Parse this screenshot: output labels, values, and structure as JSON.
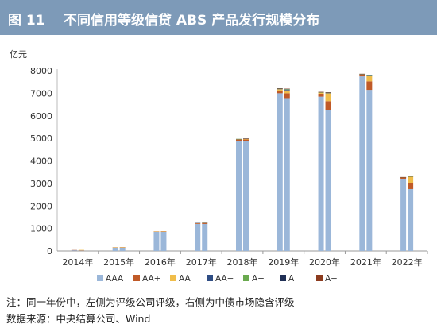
{
  "header": {
    "figure_label": "图 11",
    "title": "不同信用等级信贷 ABS 产品发行规模分布"
  },
  "colors": {
    "header_bg": "#7d9ab8",
    "AAA": "#9bb7d9",
    "AA+": "#c05a28",
    "AA": "#f0bd4a",
    "AA-": "#2f4d84",
    "A+": "#6aaa4f",
    "A": "#1f2f55",
    "A-": "#8c3b1e"
  },
  "chart_data": {
    "type": "bar",
    "stacked": true,
    "ylabel": "亿元",
    "ylim": [
      0,
      8000
    ],
    "yticks": [
      0,
      1000,
      2000,
      3000,
      4000,
      5000,
      6000,
      7000,
      8000
    ],
    "categories": [
      "2014年",
      "2015年",
      "2016年",
      "2017年",
      "2018年",
      "2019年",
      "2020年",
      "2021年",
      "2022年"
    ],
    "bars_per_category": 2,
    "bar_labels": [
      "左",
      "右"
    ],
    "series": [
      {
        "name": "AAA",
        "color": "#9bb7d9",
        "left": [
          40,
          150,
          850,
          1200,
          4880,
          7000,
          6850,
          7750,
          3200
        ],
        "right": [
          25,
          150,
          850,
          1200,
          4880,
          6750,
          6250,
          7150,
          2750
        ]
      },
      {
        "name": "AA+",
        "color": "#c05a28",
        "left": [
          3,
          10,
          15,
          30,
          70,
          120,
          130,
          70,
          60
        ],
        "right": [
          3,
          10,
          15,
          40,
          70,
          250,
          400,
          380,
          250
        ]
      },
      {
        "name": "AA",
        "color": "#f0bd4a",
        "left": [
          0,
          5,
          5,
          15,
          20,
          60,
          50,
          20,
          10
        ],
        "right": [
          20,
          10,
          15,
          20,
          30,
          130,
          350,
          230,
          300
        ]
      },
      {
        "name": "AA−",
        "color": "#2f4d84",
        "left": [
          0,
          0,
          0,
          2,
          3,
          20,
          15,
          10,
          5
        ],
        "right": [
          0,
          0,
          0,
          3,
          5,
          30,
          20,
          20,
          10
        ]
      },
      {
        "name": "A+",
        "color": "#6aaa4f",
        "left": [
          0,
          0,
          0,
          0,
          3,
          10,
          5,
          5,
          2
        ],
        "right": [
          0,
          0,
          0,
          0,
          3,
          20,
          5,
          10,
          5
        ]
      },
      {
        "name": "A",
        "color": "#1f2f55",
        "left": [
          0,
          0,
          0,
          0,
          0,
          5,
          5,
          5,
          2
        ],
        "right": [
          0,
          0,
          0,
          0,
          2,
          15,
          10,
          10,
          5
        ]
      },
      {
        "name": "A−",
        "color": "#8c3b1e",
        "left": [
          0,
          0,
          0,
          0,
          0,
          5,
          5,
          5,
          2
        ],
        "right": [
          0,
          0,
          0,
          0,
          2,
          10,
          10,
          10,
          5
        ]
      }
    ],
    "grid": false,
    "legend_position": "bottom"
  },
  "footer": {
    "note": "注：同一年份中，左侧为评级公司评级，右侧为中债市场隐含评级",
    "source": "数据来源：中央结算公司、Wind"
  }
}
